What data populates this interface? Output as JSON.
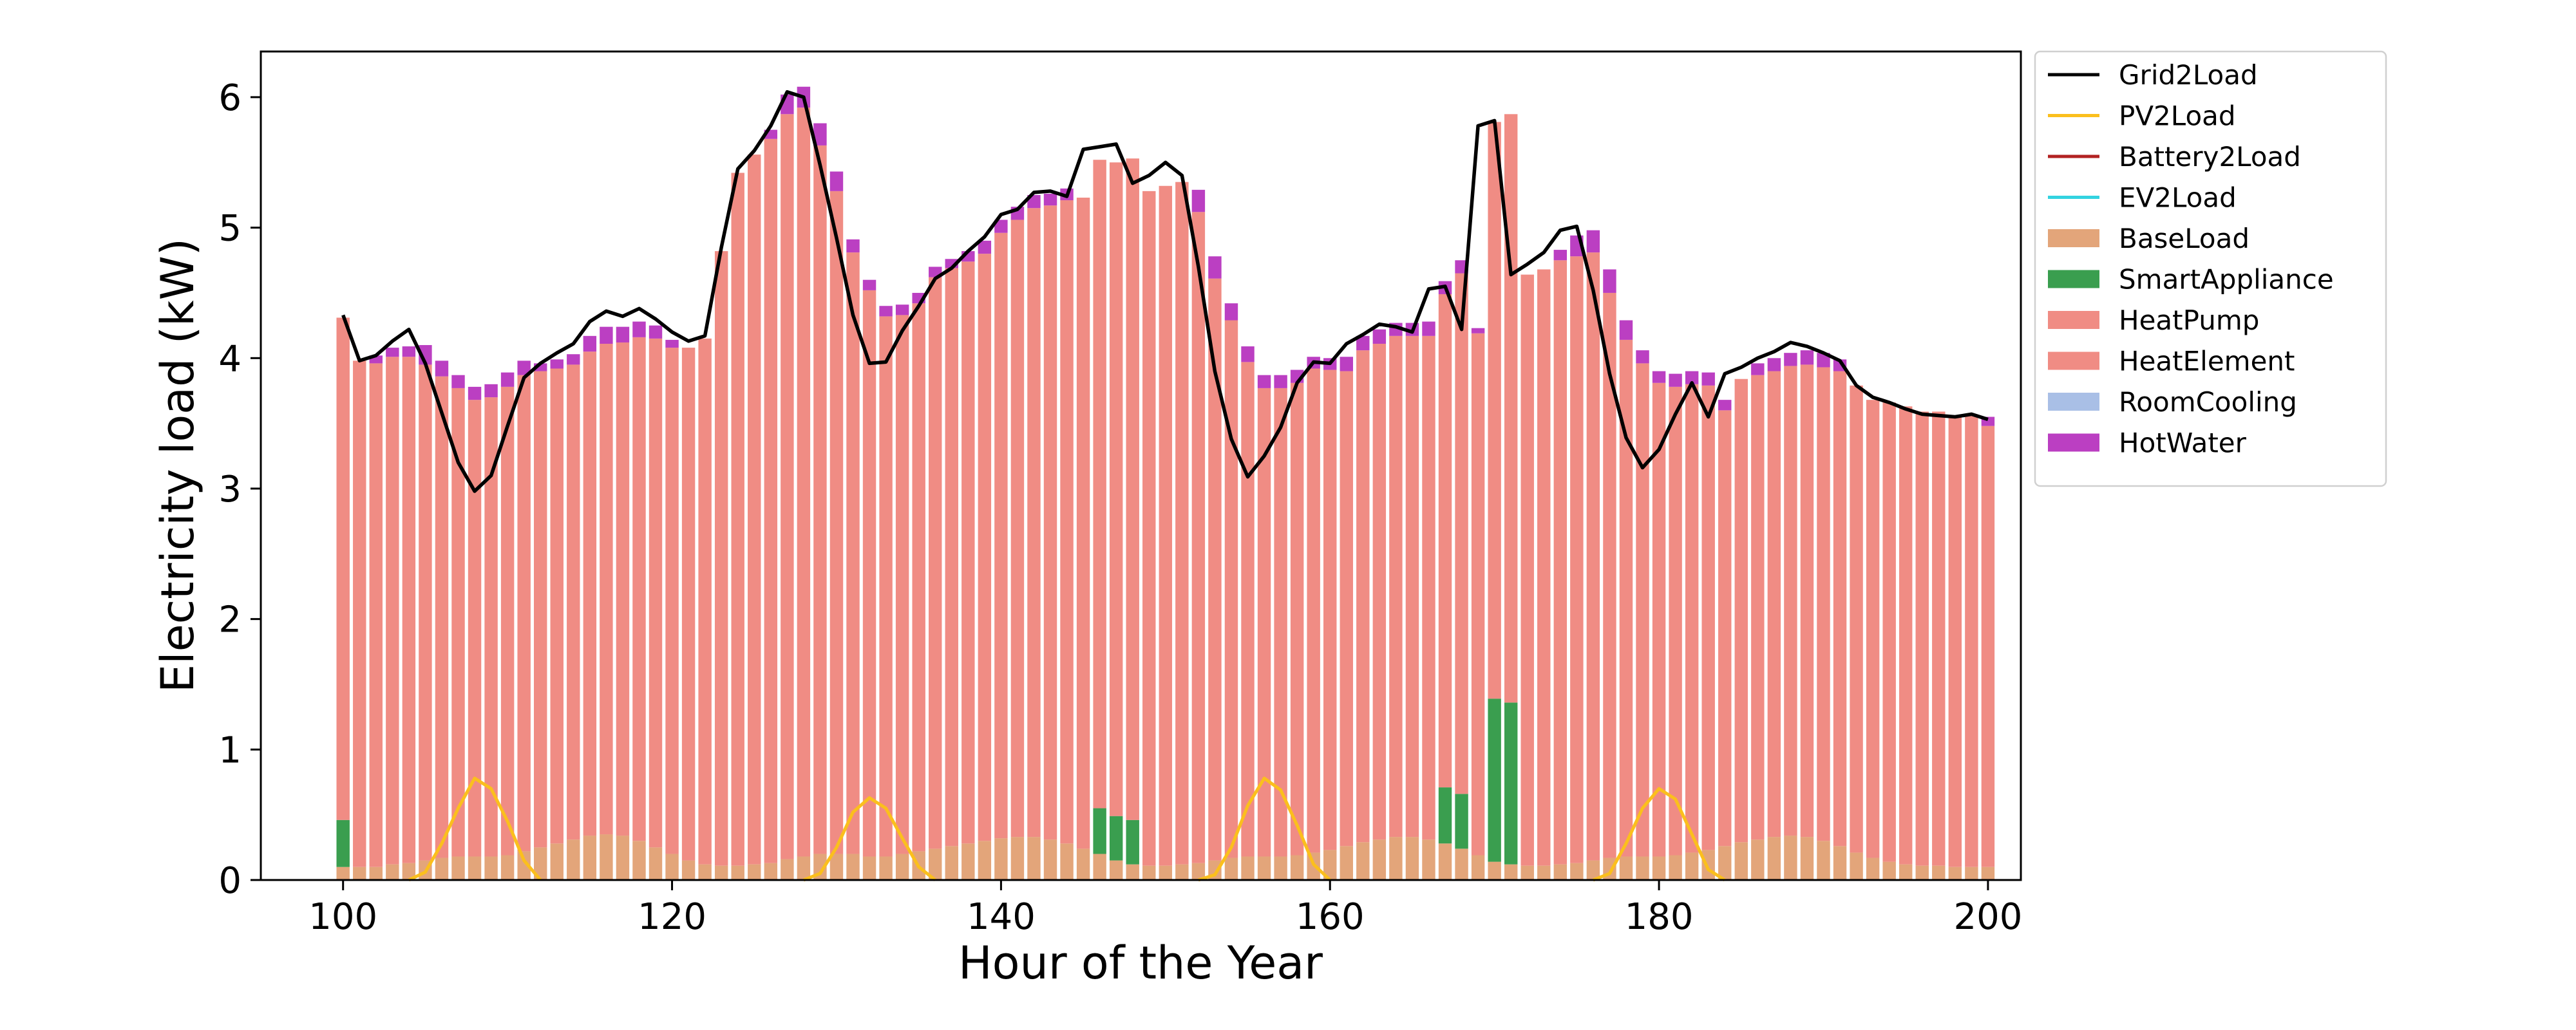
{
  "chart_data": {
    "type": "bar",
    "stacked": true,
    "title": "",
    "xlabel": "Hour of the Year",
    "ylabel": "Electricity load (kW)",
    "xlim": [
      95,
      202
    ],
    "ylim": [
      0,
      6.35
    ],
    "xticks": [
      100,
      120,
      140,
      160,
      180,
      200
    ],
    "yticks": [
      0,
      1,
      2,
      3,
      4,
      5,
      6
    ],
    "legend_position": "outside-upper-right",
    "grid": false,
    "x": [
      100,
      101,
      102,
      103,
      104,
      105,
      106,
      107,
      108,
      109,
      110,
      111,
      112,
      113,
      114,
      115,
      116,
      117,
      118,
      119,
      120,
      121,
      122,
      123,
      124,
      125,
      126,
      127,
      128,
      129,
      130,
      131,
      132,
      133,
      134,
      135,
      136,
      137,
      138,
      139,
      140,
      141,
      142,
      143,
      144,
      145,
      146,
      147,
      148,
      149,
      150,
      151,
      152,
      153,
      154,
      155,
      156,
      157,
      158,
      159,
      160,
      161,
      162,
      163,
      164,
      165,
      166,
      167,
      168,
      169,
      170,
      171,
      172,
      173,
      174,
      175,
      176,
      177,
      178,
      179,
      180,
      181,
      182,
      183,
      184,
      185,
      186,
      187,
      188,
      189,
      190,
      191,
      192,
      193,
      194,
      195,
      196,
      197,
      198,
      199,
      200
    ],
    "bar_series": [
      {
        "name": "BaseLoad",
        "color": "#e3a57a",
        "values": [
          0.1,
          0.1,
          0.1,
          0.12,
          0.13,
          0.15,
          0.17,
          0.18,
          0.18,
          0.18,
          0.19,
          0.22,
          0.25,
          0.28,
          0.31,
          0.34,
          0.35,
          0.34,
          0.3,
          0.25,
          0.2,
          0.15,
          0.12,
          0.11,
          0.11,
          0.12,
          0.13,
          0.16,
          0.18,
          0.2,
          0.2,
          0.2,
          0.18,
          0.18,
          0.2,
          0.22,
          0.24,
          0.26,
          0.28,
          0.3,
          0.32,
          0.33,
          0.33,
          0.31,
          0.28,
          0.24,
          0.2,
          0.15,
          0.12,
          0.11,
          0.11,
          0.12,
          0.13,
          0.15,
          0.17,
          0.18,
          0.18,
          0.18,
          0.19,
          0.21,
          0.23,
          0.26,
          0.29,
          0.31,
          0.33,
          0.33,
          0.31,
          0.28,
          0.24,
          0.19,
          0.14,
          0.12,
          0.11,
          0.11,
          0.12,
          0.13,
          0.15,
          0.17,
          0.18,
          0.18,
          0.18,
          0.19,
          0.21,
          0.23,
          0.26,
          0.29,
          0.31,
          0.33,
          0.34,
          0.33,
          0.3,
          0.26,
          0.21,
          0.17,
          0.14,
          0.12,
          0.11,
          0.11,
          0.1,
          0.1,
          0.1
        ]
      },
      {
        "name": "SmartAppliance",
        "color": "#3a9e4f",
        "values": [
          0.36,
          0,
          0,
          0,
          0,
          0,
          0,
          0,
          0,
          0,
          0,
          0,
          0,
          0,
          0,
          0,
          0,
          0,
          0,
          0,
          0,
          0,
          0,
          0,
          0,
          0,
          0,
          0,
          0,
          0,
          0,
          0,
          0,
          0,
          0,
          0,
          0,
          0,
          0,
          0,
          0,
          0,
          0,
          0,
          0,
          0,
          0.35,
          0.34,
          0.34,
          0,
          0,
          0,
          0,
          0,
          0,
          0,
          0,
          0,
          0,
          0,
          0,
          0,
          0,
          0,
          0,
          0,
          0,
          0.43,
          0.42,
          0,
          1.25,
          1.24,
          0,
          0,
          0,
          0,
          0,
          0,
          0,
          0,
          0,
          0,
          0,
          0,
          0,
          0,
          0,
          0,
          0,
          0,
          0,
          0,
          0,
          0,
          0,
          0,
          0,
          0,
          0,
          0,
          0
        ]
      },
      {
        "name": "HeatPump",
        "color": "#f08c84",
        "values": [
          3.85,
          3.88,
          3.86,
          3.89,
          3.88,
          3.8,
          3.69,
          3.59,
          3.5,
          3.52,
          3.59,
          3.65,
          3.65,
          3.64,
          3.64,
          3.71,
          3.76,
          3.78,
          3.86,
          3.9,
          3.88,
          3.93,
          4.03,
          4.71,
          5.31,
          5.44,
          5.55,
          5.71,
          5.74,
          5.43,
          5.08,
          4.61,
          4.34,
          4.14,
          4.13,
          4.2,
          4.38,
          4.43,
          4.46,
          4.5,
          4.64,
          4.73,
          4.82,
          4.86,
          4.93,
          4.99,
          4.97,
          5.01,
          5.07,
          5.17,
          5.21,
          5.23,
          4.99,
          4.46,
          4.12,
          3.79,
          3.59,
          3.59,
          3.62,
          3.71,
          3.68,
          3.64,
          3.77,
          3.8,
          3.84,
          3.84,
          3.86,
          3.78,
          3.99,
          4.0,
          4.42,
          4.51,
          4.53,
          4.57,
          4.63,
          4.65,
          4.66,
          4.33,
          3.96,
          3.78,
          3.63,
          3.59,
          3.59,
          3.56,
          3.34,
          3.55,
          3.56,
          3.57,
          3.6,
          3.62,
          3.63,
          3.64,
          3.58,
          3.51,
          3.52,
          3.51,
          3.48,
          3.48,
          3.46,
          3.47,
          3.38
        ]
      },
      {
        "name": "HeatElement",
        "color": "#f08c84",
        "values": [
          0,
          0,
          0,
          0,
          0,
          0,
          0,
          0,
          0,
          0,
          0,
          0,
          0,
          0,
          0,
          0,
          0,
          0,
          0,
          0,
          0,
          0,
          0,
          0,
          0,
          0,
          0,
          0,
          0,
          0,
          0,
          0,
          0,
          0,
          0,
          0,
          0,
          0,
          0,
          0,
          0,
          0,
          0,
          0,
          0,
          0,
          0,
          0,
          0,
          0,
          0,
          0,
          0,
          0,
          0,
          0,
          0,
          0,
          0,
          0,
          0,
          0,
          0,
          0,
          0,
          0,
          0,
          0,
          0,
          0,
          0,
          0,
          0,
          0,
          0,
          0,
          0,
          0,
          0,
          0,
          0,
          0,
          0,
          0,
          0,
          0,
          0,
          0,
          0,
          0,
          0,
          0,
          0,
          0,
          0,
          0,
          0,
          0,
          0,
          0,
          0
        ]
      },
      {
        "name": "RoomCooling",
        "color": "#a9bfe6",
        "values": [
          0,
          0,
          0,
          0,
          0,
          0,
          0,
          0,
          0,
          0,
          0,
          0,
          0,
          0,
          0,
          0,
          0,
          0,
          0,
          0,
          0,
          0,
          0,
          0,
          0,
          0,
          0,
          0,
          0,
          0,
          0,
          0,
          0,
          0,
          0,
          0,
          0,
          0,
          0,
          0,
          0,
          0,
          0,
          0,
          0,
          0,
          0,
          0,
          0,
          0,
          0,
          0,
          0,
          0,
          0,
          0,
          0,
          0,
          0,
          0,
          0,
          0,
          0,
          0,
          0,
          0,
          0,
          0,
          0,
          0,
          0,
          0,
          0,
          0,
          0,
          0,
          0,
          0,
          0,
          0,
          0,
          0,
          0,
          0,
          0,
          0,
          0,
          0,
          0,
          0,
          0,
          0,
          0,
          0,
          0,
          0,
          0,
          0,
          0,
          0,
          0
        ]
      },
      {
        "name": "HotWater",
        "color": "#bb3fc2",
        "values": [
          0,
          0,
          0.06,
          0.07,
          0.08,
          0.15,
          0.12,
          0.1,
          0.1,
          0.1,
          0.11,
          0.11,
          0.06,
          0.07,
          0.08,
          0.12,
          0.13,
          0.12,
          0.12,
          0.1,
          0.06,
          0,
          0,
          0,
          0,
          0,
          0.07,
          0.15,
          0.16,
          0.17,
          0.15,
          0.1,
          0.08,
          0.08,
          0.08,
          0.08,
          0.08,
          0.07,
          0.08,
          0.1,
          0.1,
          0.1,
          0.1,
          0.09,
          0.09,
          0,
          0,
          0,
          0,
          0,
          0,
          0,
          0.17,
          0.17,
          0.13,
          0.12,
          0.1,
          0.1,
          0.1,
          0.09,
          0.09,
          0.11,
          0.11,
          0.11,
          0.1,
          0.1,
          0.11,
          0.1,
          0.1,
          0.04,
          0,
          0,
          0,
          0,
          0.08,
          0.16,
          0.17,
          0.18,
          0.15,
          0.1,
          0.09,
          0.1,
          0.1,
          0.1,
          0.08,
          0,
          0.09,
          0.1,
          0.1,
          0.11,
          0.11,
          0.09,
          0,
          0,
          0,
          0,
          0,
          0,
          0,
          0,
          0.07
        ]
      }
    ],
    "line_series": [
      {
        "name": "Grid2Load",
        "color": "#000000",
        "values": [
          4.33,
          3.98,
          4.02,
          4.13,
          4.22,
          3.96,
          3.58,
          3.2,
          2.98,
          3.1,
          3.48,
          3.85,
          3.96,
          4.04,
          4.11,
          4.28,
          4.36,
          4.32,
          4.38,
          4.3,
          4.2,
          4.13,
          4.17,
          4.85,
          5.45,
          5.59,
          5.78,
          6.04,
          6.0,
          5.48,
          4.92,
          4.33,
          3.96,
          3.97,
          4.21,
          4.4,
          4.61,
          4.69,
          4.82,
          4.93,
          5.1,
          5.14,
          5.27,
          5.28,
          5.24,
          5.6,
          5.62,
          5.64,
          5.34,
          5.4,
          5.5,
          5.4,
          4.7,
          3.9,
          3.38,
          3.09,
          3.25,
          3.47,
          3.81,
          3.97,
          3.96,
          4.11,
          4.18,
          4.26,
          4.24,
          4.2,
          4.53,
          4.55,
          4.22,
          5.78,
          5.82,
          4.64,
          4.72,
          4.81,
          4.98,
          5.01,
          4.52,
          3.88,
          3.39,
          3.16,
          3.3,
          3.57,
          3.81,
          3.55,
          3.88,
          3.93,
          4.0,
          4.05,
          4.12,
          4.09,
          4.04,
          3.98,
          3.79,
          3.7,
          3.66,
          3.61,
          3.57,
          3.56,
          3.55,
          3.57,
          3.53
        ]
      },
      {
        "name": "PV2Load",
        "color": "#fbbf1d",
        "values": [
          0,
          0,
          0,
          0,
          0,
          0.06,
          0.28,
          0.55,
          0.78,
          0.7,
          0.45,
          0.15,
          0,
          0,
          0,
          0,
          0,
          0,
          0,
          0,
          0,
          0,
          0,
          0,
          0,
          0,
          0,
          0,
          0,
          0.05,
          0.25,
          0.52,
          0.63,
          0.55,
          0.32,
          0.1,
          0,
          0,
          0,
          0,
          0,
          0,
          0,
          0,
          0,
          0,
          0,
          0,
          0,
          0,
          0,
          0,
          0,
          0.04,
          0.25,
          0.57,
          0.78,
          0.69,
          0.42,
          0.12,
          0,
          0,
          0,
          0,
          0,
          0,
          0,
          0,
          0,
          0,
          0,
          0,
          0,
          0,
          0,
          0,
          0,
          0.05,
          0.28,
          0.55,
          0.7,
          0.62,
          0.35,
          0.08,
          0,
          0,
          0,
          0,
          0,
          0,
          0,
          0,
          0,
          0,
          0,
          0,
          0,
          0,
          0,
          0,
          0
        ]
      },
      {
        "name": "Battery2Load",
        "color": "#b22222",
        "values": []
      },
      {
        "name": "EV2Load",
        "color": "#33d3e0",
        "values": []
      }
    ],
    "legend_order": [
      "Grid2Load",
      "PV2Load",
      "Battery2Load",
      "EV2Load",
      "BaseLoad",
      "SmartAppliance",
      "HeatPump",
      "HeatElement",
      "RoomCooling",
      "HotWater"
    ]
  }
}
